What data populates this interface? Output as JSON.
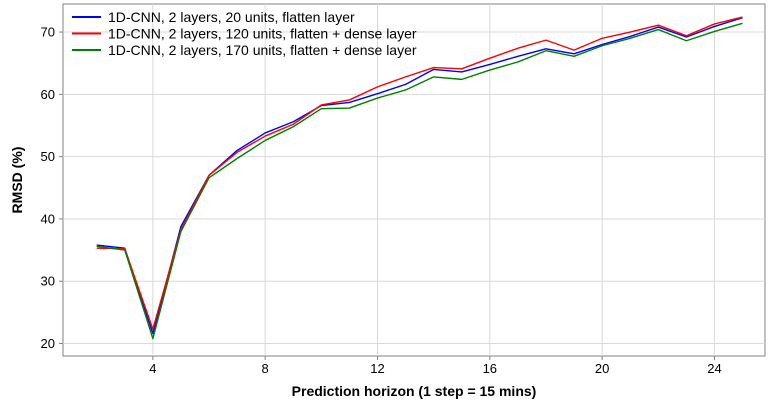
{
  "chart_data": {
    "type": "line",
    "title": "",
    "xlabel": "Prediction horizon (1 step = 15 mins)",
    "ylabel": "RMSD (%)",
    "xlim": [
      0.8,
      25.8
    ],
    "ylim": [
      18,
      74.5
    ],
    "xticks": [
      4,
      8,
      12,
      16,
      20,
      24
    ],
    "yticks": [
      20,
      30,
      40,
      50,
      60,
      70
    ],
    "grid": true,
    "legend_position": "top-left",
    "x": [
      2,
      3,
      4,
      5,
      6,
      7,
      8,
      9,
      10,
      11,
      12,
      13,
      14,
      15,
      16,
      17,
      18,
      19,
      20,
      21,
      22,
      23,
      24,
      25
    ],
    "series": [
      {
        "name": "1D-CNN, 2 layers, 20 units, flatten layer",
        "color": "#0000ff",
        "values": [
          35.8,
          35.3,
          21.6,
          38.8,
          47.0,
          51.0,
          53.8,
          55.6,
          58.2,
          58.7,
          60.1,
          61.6,
          64.0,
          63.6,
          64.8,
          66.1,
          67.3,
          66.5,
          68.0,
          69.3,
          70.8,
          69.2,
          70.9,
          72.3
        ]
      },
      {
        "name": "1D-CNN, 2 layers, 120 units, flatten + dense layer",
        "color": "#ff0000",
        "values": [
          35.3,
          35.2,
          22.3,
          38.3,
          47.0,
          50.7,
          53.3,
          55.2,
          58.3,
          59.1,
          61.2,
          62.8,
          64.3,
          64.1,
          65.8,
          67.4,
          68.7,
          67.1,
          69.0,
          70.0,
          71.1,
          69.4,
          71.3,
          72.4
        ]
      },
      {
        "name": "1D-CNN, 2 layers, 170 units, flatten + dense layer",
        "color": "#008000",
        "values": [
          35.6,
          35.0,
          20.8,
          38.0,
          46.6,
          49.7,
          52.6,
          54.8,
          57.7,
          57.8,
          59.4,
          60.7,
          62.8,
          62.4,
          63.9,
          65.2,
          67.0,
          66.1,
          67.8,
          69.0,
          70.4,
          68.6,
          70.1,
          71.4
        ]
      }
    ]
  }
}
